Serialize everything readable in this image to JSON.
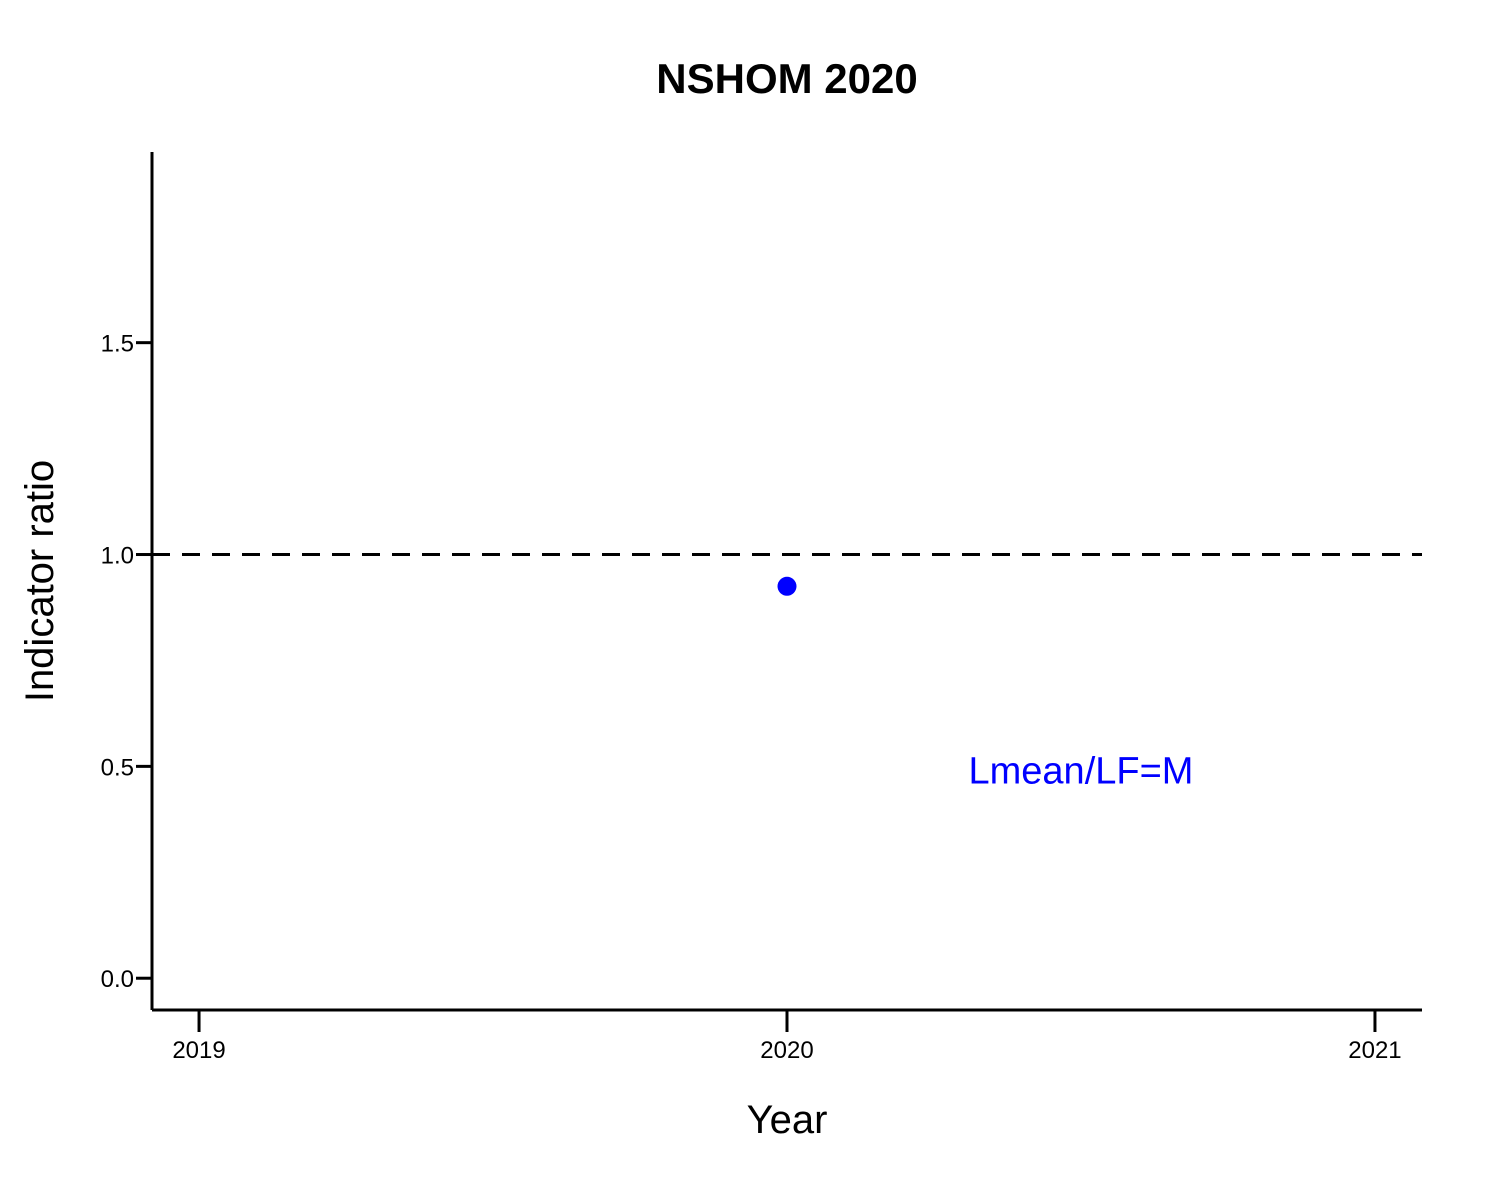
{
  "chart_data": {
    "type": "scatter",
    "title": "NSHOM 2020",
    "xlabel": "Year",
    "ylabel": "Indicator ratio",
    "xlim": [
      2018.92,
      2021.08
    ],
    "ylim": [
      -0.075,
      1.95
    ],
    "x_ticks": [
      2019,
      2020,
      2021
    ],
    "x_tick_labels": [
      "2019",
      "2020",
      "2021"
    ],
    "y_ticks": [
      0.0,
      0.5,
      1.0,
      1.5
    ],
    "y_tick_labels": [
      "0.0",
      "0.5",
      "1.0",
      "1.5"
    ],
    "series": [
      {
        "name": "Lmean/LF=M",
        "color": "#0000ff",
        "marker": "circle",
        "x": [
          2020
        ],
        "y": [
          0.925
        ]
      }
    ],
    "reference_lines": [
      {
        "axis": "y",
        "value": 1.0,
        "style": "dashed",
        "color": "#000000"
      }
    ],
    "annotations": [
      {
        "text": "Lmean/LF=M",
        "x": 2020.5,
        "y": 0.49,
        "color": "#0000ff"
      }
    ],
    "grid": false,
    "legend": "none"
  }
}
